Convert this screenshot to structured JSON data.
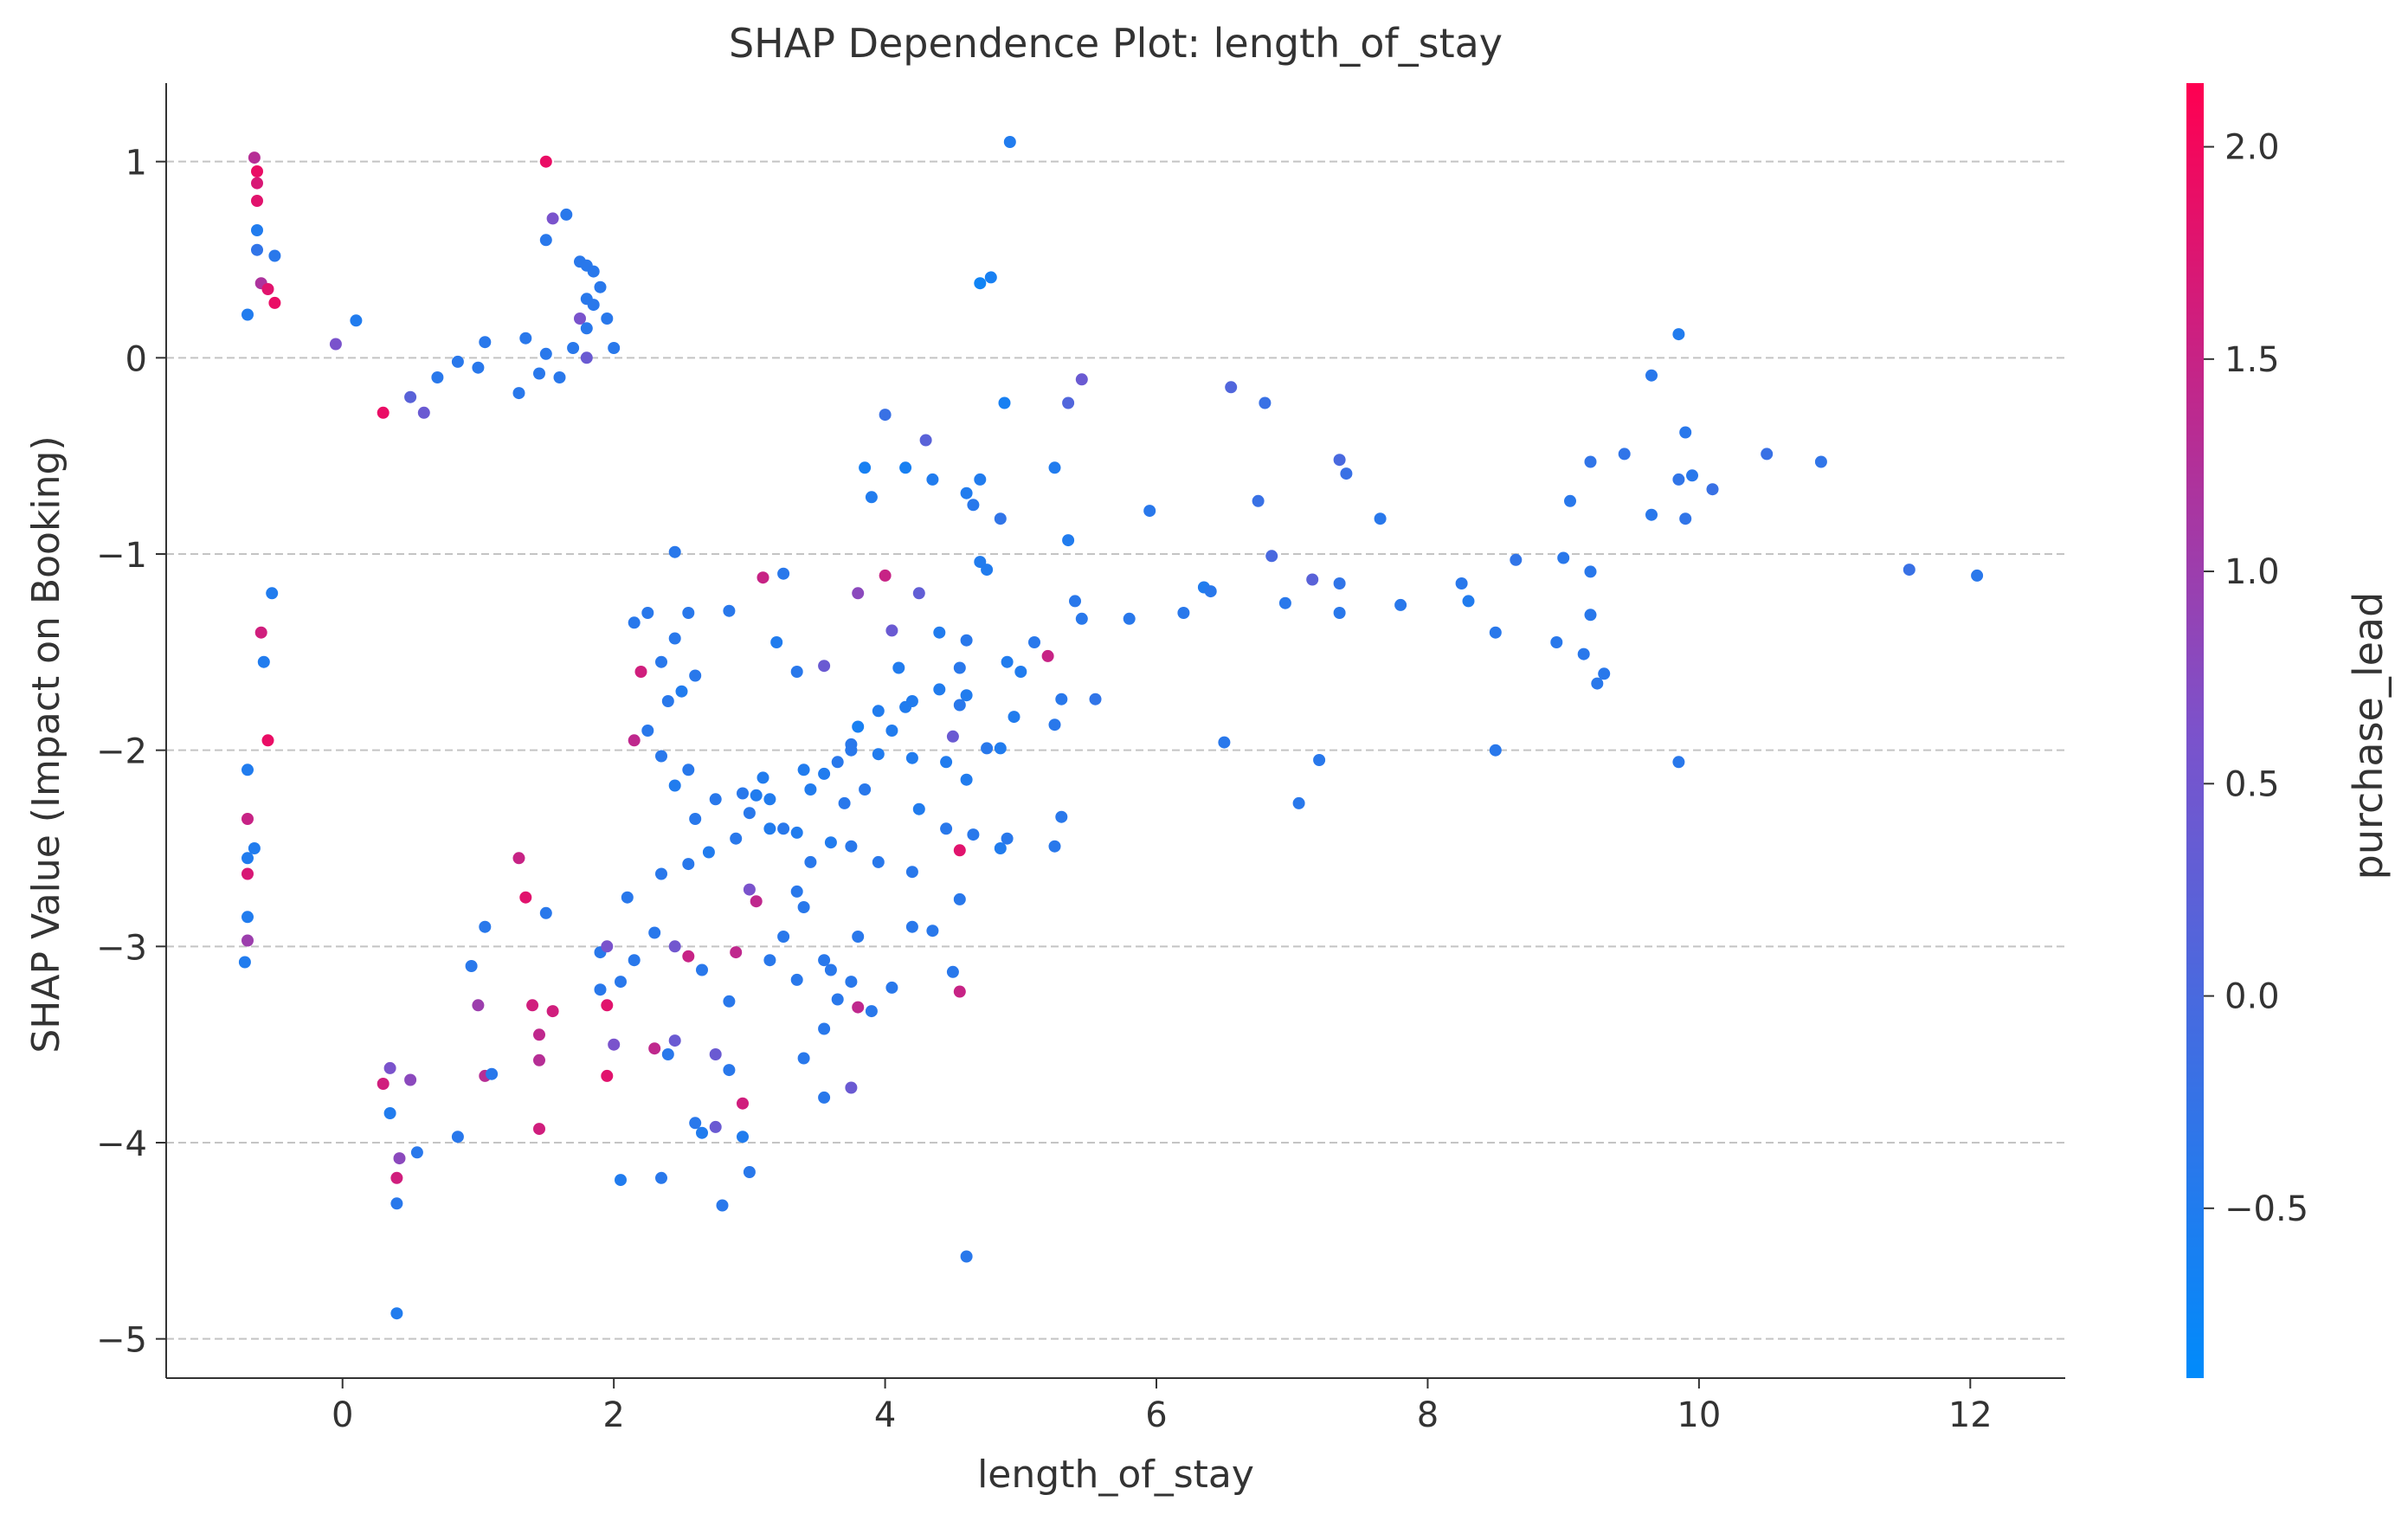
{
  "chart_data": {
    "type": "scatter",
    "title": "SHAP Dependence Plot: length_of_stay",
    "xlabel": "length_of_stay",
    "ylabel": "SHAP Value (Impact on Booking)",
    "xlim": [
      -1.3,
      12.7
    ],
    "ylim": [
      -5.2,
      1.4
    ],
    "x_ticks": [
      0,
      2,
      4,
      6,
      8,
      10,
      12
    ],
    "x_tick_labels": [
      "0",
      "2",
      "4",
      "6",
      "8",
      "10",
      "12"
    ],
    "y_ticks": [
      1,
      0,
      -1,
      -2,
      -3,
      -4,
      -5
    ],
    "y_tick_labels": [
      "1",
      "0",
      "−1",
      "−2",
      "−3",
      "−4",
      "−5"
    ],
    "grid": "horizontal dashed",
    "colorbar": {
      "label": "purchase_lead",
      "range": [
        -0.9,
        2.15
      ],
      "ticks": [
        2.0,
        1.5,
        1.0,
        0.5,
        0.0,
        -0.5
      ],
      "tick_labels": [
        "2.0",
        "1.5",
        "1.0",
        "0.5",
        "0.0",
        "−0.5"
      ],
      "low_color": "#008bfb",
      "mid_color": "#7c52cb",
      "high_color": "#ff0051"
    },
    "points": [
      [
        4.92,
        1.1,
        -0.5
      ],
      [
        4.78,
        0.41,
        -0.6
      ],
      [
        4.7,
        0.38,
        -0.7
      ],
      [
        9.85,
        0.12,
        -0.5
      ],
      [
        9.65,
        -0.09,
        -0.4
      ],
      [
        5.45,
        -0.11,
        0.4
      ],
      [
        6.55,
        -0.15,
        0.1
      ],
      [
        5.35,
        -0.23,
        0.1
      ],
      [
        6.8,
        -0.23,
        -0.2
      ],
      [
        4.88,
        -0.23,
        -0.6
      ],
      [
        4.0,
        -0.29,
        -0.2
      ],
      [
        4.3,
        -0.42,
        0.2
      ],
      [
        9.9,
        -0.38,
        -0.4
      ],
      [
        9.45,
        -0.49,
        -0.3
      ],
      [
        10.5,
        -0.49,
        -0.2
      ],
      [
        10.9,
        -0.53,
        -0.3
      ],
      [
        9.2,
        -0.53,
        -0.3
      ],
      [
        7.35,
        -0.52,
        0.0
      ],
      [
        5.25,
        -0.56,
        -0.5
      ],
      [
        4.15,
        -0.56,
        -0.6
      ],
      [
        3.85,
        -0.56,
        -0.6
      ],
      [
        9.85,
        -0.62,
        -0.3
      ],
      [
        9.95,
        -0.6,
        -0.4
      ],
      [
        10.1,
        -0.67,
        -0.2
      ],
      [
        4.35,
        -0.62,
        -0.5
      ],
      [
        4.7,
        -0.62,
        -0.5
      ],
      [
        7.4,
        -0.59,
        -0.2
      ],
      [
        4.6,
        -0.69,
        -0.5
      ],
      [
        3.9,
        -0.71,
        -0.5
      ],
      [
        9.05,
        -0.73,
        -0.4
      ],
      [
        6.75,
        -0.73,
        -0.2
      ],
      [
        5.95,
        -0.78,
        -0.4
      ],
      [
        4.65,
        -0.75,
        -0.4
      ],
      [
        4.85,
        -0.82,
        -0.3
      ],
      [
        7.65,
        -0.82,
        -0.4
      ],
      [
        9.65,
        -0.8,
        -0.4
      ],
      [
        9.9,
        -0.82,
        -0.3
      ],
      [
        5.35,
        -0.93,
        -0.5
      ],
      [
        6.85,
        -1.01,
        0.0
      ],
      [
        8.65,
        -1.03,
        -0.3
      ],
      [
        9.0,
        -1.02,
        -0.4
      ],
      [
        4.7,
        -1.04,
        -0.5
      ],
      [
        4.75,
        -1.08,
        -0.5
      ],
      [
        9.2,
        -1.09,
        -0.4
      ],
      [
        3.1,
        -1.12,
        1.5
      ],
      [
        3.25,
        -1.1,
        -0.4
      ],
      [
        4.0,
        -1.11,
        1.5
      ],
      [
        11.55,
        -1.08,
        -0.2
      ],
      [
        12.05,
        -1.11,
        -0.4
      ],
      [
        7.15,
        -1.13,
        0.2
      ],
      [
        7.35,
        -1.15,
        -0.3
      ],
      [
        8.25,
        -1.15,
        -0.4
      ],
      [
        6.35,
        -1.17,
        -0.5
      ],
      [
        6.4,
        -1.19,
        -0.4
      ],
      [
        3.8,
        -1.2,
        0.8
      ],
      [
        4.25,
        -1.2,
        0.3
      ],
      [
        5.4,
        -1.24,
        -0.4
      ],
      [
        8.3,
        -1.24,
        -0.5
      ],
      [
        6.95,
        -1.25,
        -0.4
      ],
      [
        7.8,
        -1.26,
        -0.4
      ],
      [
        6.2,
        -1.3,
        -0.4
      ],
      [
        7.35,
        -1.3,
        -0.4
      ],
      [
        5.8,
        -1.33,
        -0.4
      ],
      [
        5.45,
        -1.33,
        -0.4
      ],
      [
        9.2,
        -1.31,
        -0.4
      ],
      [
        2.85,
        -1.29,
        -0.4
      ],
      [
        4.05,
        -1.39,
        0.4
      ],
      [
        8.5,
        -1.4,
        -0.4
      ],
      [
        4.4,
        -1.4,
        -0.5
      ],
      [
        4.6,
        -1.44,
        -0.4
      ],
      [
        5.1,
        -1.45,
        -0.4
      ],
      [
        3.2,
        -1.45,
        -0.5
      ],
      [
        8.95,
        -1.45,
        -0.4
      ],
      [
        9.15,
        -1.51,
        -0.4
      ],
      [
        5.2,
        -1.52,
        1.5
      ],
      [
        4.9,
        -1.55,
        -0.5
      ],
      [
        3.55,
        -1.57,
        0.4
      ],
      [
        4.1,
        -1.58,
        -0.5
      ],
      [
        4.55,
        -1.58,
        -0.4
      ],
      [
        5.0,
        -1.6,
        -0.5
      ],
      [
        3.35,
        -1.6,
        -0.4
      ],
      [
        9.3,
        -1.61,
        -0.4
      ],
      [
        9.25,
        -1.66,
        -0.4
      ],
      [
        4.4,
        -1.69,
        -0.5
      ],
      [
        5.55,
        -1.74,
        -0.3
      ],
      [
        5.3,
        -1.74,
        -0.4
      ],
      [
        4.2,
        -1.75,
        -0.5
      ],
      [
        4.6,
        -1.72,
        -0.5
      ],
      [
        4.55,
        -1.77,
        -0.4
      ],
      [
        4.15,
        -1.78,
        -0.5
      ],
      [
        3.95,
        -1.8,
        -0.5
      ],
      [
        4.95,
        -1.83,
        -0.5
      ],
      [
        5.25,
        -1.87,
        -0.4
      ],
      [
        3.8,
        -1.88,
        -0.6
      ],
      [
        4.05,
        -1.9,
        -0.5
      ],
      [
        4.5,
        -1.93,
        0.4
      ],
      [
        3.75,
        -1.97,
        -0.4
      ],
      [
        6.5,
        -1.96,
        -0.4
      ],
      [
        4.75,
        -1.99,
        -0.4
      ],
      [
        4.85,
        -1.99,
        -0.5
      ],
      [
        3.75,
        -2.0,
        -0.4
      ],
      [
        8.5,
        -2.0,
        -0.4
      ],
      [
        3.95,
        -2.02,
        -0.5
      ],
      [
        4.2,
        -2.04,
        -0.5
      ],
      [
        7.2,
        -2.05,
        -0.4
      ],
      [
        9.85,
        -2.06,
        -0.4
      ],
      [
        3.65,
        -2.06,
        -0.4
      ],
      [
        4.45,
        -2.06,
        -0.5
      ],
      [
        3.4,
        -2.1,
        -0.5
      ],
      [
        3.1,
        -2.14,
        -0.5
      ],
      [
        3.55,
        -2.12,
        -0.5
      ],
      [
        4.6,
        -2.15,
        -0.5
      ],
      [
        3.85,
        -2.2,
        -0.4
      ],
      [
        3.45,
        -2.2,
        -0.5
      ],
      [
        3.05,
        -2.23,
        -0.5
      ],
      [
        3.15,
        -2.25,
        -0.5
      ],
      [
        7.05,
        -2.27,
        -0.4
      ],
      [
        3.7,
        -2.27,
        -0.4
      ],
      [
        4.25,
        -2.3,
        -0.5
      ],
      [
        3.0,
        -2.32,
        -0.4
      ],
      [
        5.3,
        -2.34,
        -0.4
      ],
      [
        3.25,
        -2.4,
        -0.4
      ],
      [
        3.35,
        -2.42,
        -0.5
      ],
      [
        3.15,
        -2.4,
        -0.5
      ],
      [
        4.45,
        -2.4,
        -0.4
      ],
      [
        4.65,
        -2.43,
        -0.4
      ],
      [
        4.9,
        -2.45,
        -0.4
      ],
      [
        5.25,
        -2.49,
        -0.4
      ],
      [
        3.6,
        -2.47,
        -0.5
      ],
      [
        3.75,
        -2.49,
        -0.4
      ],
      [
        4.55,
        -2.51,
        1.8
      ],
      [
        4.85,
        -2.5,
        -0.5
      ],
      [
        3.45,
        -2.57,
        -0.4
      ],
      [
        3.95,
        -2.57,
        -0.4
      ],
      [
        4.2,
        -2.62,
        -0.4
      ],
      [
        3.0,
        -2.71,
        0.6
      ],
      [
        3.35,
        -2.72,
        -0.4
      ],
      [
        3.05,
        -2.77,
        1.4
      ],
      [
        3.4,
        -2.8,
        -0.4
      ],
      [
        4.55,
        -2.76,
        -0.4
      ],
      [
        4.2,
        -2.9,
        -0.4
      ],
      [
        4.35,
        -2.92,
        -0.4
      ],
      [
        3.8,
        -2.95,
        -0.4
      ],
      [
        3.25,
        -2.95,
        -0.4
      ],
      [
        3.15,
        -3.07,
        -0.4
      ],
      [
        3.55,
        -3.07,
        -0.4
      ],
      [
        3.6,
        -3.12,
        -0.4
      ],
      [
        3.35,
        -3.17,
        -0.4
      ],
      [
        3.75,
        -3.18,
        -0.4
      ],
      [
        4.05,
        -3.21,
        -0.4
      ],
      [
        4.5,
        -3.13,
        -0.4
      ],
      [
        4.55,
        -3.23,
        1.5
      ],
      [
        3.65,
        -3.27,
        -0.4
      ],
      [
        3.8,
        -3.31,
        1.4
      ],
      [
        3.9,
        -3.33,
        -0.4
      ],
      [
        3.55,
        -3.42,
        -0.4
      ],
      [
        3.4,
        -3.57,
        -0.4
      ],
      [
        3.75,
        -3.72,
        0.4
      ],
      [
        3.55,
        -3.77,
        -0.4
      ],
      [
        2.75,
        -3.55,
        0.4
      ],
      [
        2.85,
        -3.63,
        -0.4
      ],
      [
        2.95,
        -3.8,
        1.6
      ],
      [
        2.75,
        -3.92,
        0.4
      ],
      [
        2.95,
        -3.97,
        -0.5
      ],
      [
        3.0,
        -4.15,
        -0.4
      ],
      [
        2.8,
        -4.32,
        -0.4
      ],
      [
        4.6,
        -4.58,
        -0.4
      ],
      [
        2.6,
        -3.9,
        -0.4
      ],
      [
        2.65,
        -3.95,
        -0.5
      ],
      [
        2.4,
        -3.55,
        -0.4
      ],
      [
        2.45,
        -3.48,
        0.4
      ],
      [
        2.3,
        -3.52,
        1.4
      ],
      [
        2.05,
        -4.19,
        -0.5
      ],
      [
        2.35,
        -4.18,
        -0.4
      ],
      [
        2.9,
        -3.03,
        1.4
      ],
      [
        2.85,
        -3.28,
        -0.4
      ],
      [
        2.65,
        -3.12,
        -0.4
      ],
      [
        2.55,
        -3.05,
        1.5
      ],
      [
        2.45,
        -3.0,
        0.5
      ],
      [
        2.3,
        -2.93,
        -0.4
      ],
      [
        2.15,
        -3.07,
        -0.4
      ],
      [
        2.05,
        -3.18,
        -0.4
      ],
      [
        2.1,
        -2.75,
        -0.4
      ],
      [
        2.35,
        -2.63,
        -0.4
      ],
      [
        2.55,
        -2.58,
        -0.4
      ],
      [
        2.7,
        -2.52,
        -0.5
      ],
      [
        2.9,
        -2.45,
        -0.4
      ],
      [
        2.6,
        -2.35,
        -0.4
      ],
      [
        2.75,
        -2.25,
        -0.4
      ],
      [
        2.95,
        -2.22,
        -0.4
      ],
      [
        2.45,
        -2.18,
        -0.5
      ],
      [
        2.55,
        -2.1,
        -0.4
      ],
      [
        2.35,
        -2.03,
        -0.4
      ],
      [
        2.15,
        -1.95,
        1.4
      ],
      [
        2.25,
        -1.9,
        -0.4
      ],
      [
        2.4,
        -1.75,
        -0.4
      ],
      [
        2.5,
        -1.7,
        -0.5
      ],
      [
        2.6,
        -1.62,
        -0.4
      ],
      [
        2.2,
        -1.6,
        1.6
      ],
      [
        2.35,
        -1.55,
        -0.4
      ],
      [
        2.45,
        -1.43,
        -0.4
      ],
      [
        2.25,
        -1.3,
        -0.4
      ],
      [
        2.15,
        -1.35,
        -0.4
      ],
      [
        2.55,
        -1.3,
        -0.4
      ],
      [
        2.45,
        -0.99,
        -0.4
      ],
      [
        -0.65,
        1.02,
        1.3
      ],
      [
        -0.63,
        0.95,
        1.9
      ],
      [
        -0.63,
        0.89,
        1.7
      ],
      [
        -0.63,
        0.8,
        1.8
      ],
      [
        -0.63,
        0.65,
        -0.5
      ],
      [
        -0.63,
        0.55,
        -0.3
      ],
      [
        -0.6,
        0.38,
        1.2
      ],
      [
        -0.55,
        0.35,
        1.8
      ],
      [
        -0.5,
        0.52,
        -0.4
      ],
      [
        -0.5,
        0.28,
        1.9
      ],
      [
        -0.7,
        0.22,
        -0.5
      ],
      [
        -0.7,
        -2.1,
        -0.5
      ],
      [
        -0.7,
        -2.35,
        1.5
      ],
      [
        -0.7,
        -2.55,
        -0.5
      ],
      [
        -0.7,
        -2.63,
        1.7
      ],
      [
        -0.7,
        -2.85,
        -0.5
      ],
      [
        -0.7,
        -2.97,
        1.0
      ],
      [
        -0.72,
        -3.08,
        -0.5
      ],
      [
        -0.65,
        -2.5,
        -0.5
      ],
      [
        -0.6,
        -1.4,
        1.6
      ],
      [
        -0.58,
        -1.55,
        -0.5
      ],
      [
        -0.52,
        -1.2,
        -0.5
      ],
      [
        -0.55,
        -1.95,
        1.9
      ],
      [
        0.1,
        0.19,
        -0.5
      ],
      [
        -0.05,
        0.07,
        0.6
      ],
      [
        0.4,
        -4.87,
        -0.5
      ],
      [
        0.4,
        -4.31,
        -0.4
      ],
      [
        0.4,
        -4.18,
        1.6
      ],
      [
        0.42,
        -4.08,
        0.8
      ],
      [
        0.55,
        -4.05,
        -0.4
      ],
      [
        0.85,
        -3.97,
        -0.4
      ],
      [
        0.35,
        -3.85,
        -0.5
      ],
      [
        1.45,
        -3.93,
        1.6
      ],
      [
        0.3,
        -3.7,
        1.6
      ],
      [
        0.35,
        -3.62,
        0.6
      ],
      [
        0.5,
        -3.68,
        0.8
      ],
      [
        1.05,
        -3.66,
        1.3
      ],
      [
        1.1,
        -3.65,
        -0.4
      ],
      [
        1.45,
        -3.58,
        1.3
      ],
      [
        1.45,
        -3.45,
        1.4
      ],
      [
        1.0,
        -3.3,
        1.0
      ],
      [
        1.4,
        -3.3,
        1.6
      ],
      [
        1.55,
        -3.33,
        1.6
      ],
      [
        1.9,
        -3.03,
        -0.4
      ],
      [
        1.95,
        -3.0,
        0.6
      ],
      [
        1.9,
        -3.22,
        -0.4
      ],
      [
        1.95,
        -3.3,
        1.8
      ],
      [
        2.0,
        -3.5,
        0.6
      ],
      [
        1.95,
        -3.66,
        1.8
      ],
      [
        1.5,
        -2.83,
        -0.4
      ],
      [
        1.3,
        -2.55,
        1.5
      ],
      [
        1.35,
        -2.75,
        1.8
      ],
      [
        1.05,
        -2.9,
        -0.4
      ],
      [
        0.95,
        -3.1,
        -0.4
      ],
      [
        1.5,
        1.0,
        1.9
      ],
      [
        1.55,
        0.71,
        0.6
      ],
      [
        1.65,
        0.73,
        -0.4
      ],
      [
        1.5,
        0.6,
        -0.4
      ],
      [
        1.75,
        0.49,
        -0.4
      ],
      [
        1.8,
        0.47,
        -0.4
      ],
      [
        1.85,
        0.44,
        -0.4
      ],
      [
        1.9,
        0.36,
        -0.4
      ],
      [
        1.8,
        0.3,
        -0.4
      ],
      [
        1.85,
        0.27,
        -0.4
      ],
      [
        1.75,
        0.2,
        0.6
      ],
      [
        1.8,
        0.15,
        -0.4
      ],
      [
        1.7,
        0.05,
        -0.4
      ],
      [
        1.8,
        0.0,
        0.4
      ],
      [
        1.95,
        0.2,
        -0.4
      ],
      [
        2.0,
        0.05,
        -0.4
      ],
      [
        1.35,
        0.1,
        -0.4
      ],
      [
        1.5,
        0.02,
        -0.4
      ],
      [
        1.45,
        -0.08,
        -0.4
      ],
      [
        1.6,
        -0.1,
        -0.4
      ],
      [
        1.3,
        -0.18,
        -0.4
      ],
      [
        1.05,
        0.08,
        -0.4
      ],
      [
        1.0,
        -0.05,
        -0.4
      ],
      [
        0.85,
        -0.02,
        -0.4
      ],
      [
        0.7,
        -0.1,
        -0.4
      ],
      [
        0.5,
        -0.2,
        0.2
      ],
      [
        0.3,
        -0.28,
        1.9
      ],
      [
        0.6,
        -0.28,
        0.4
      ]
    ]
  }
}
